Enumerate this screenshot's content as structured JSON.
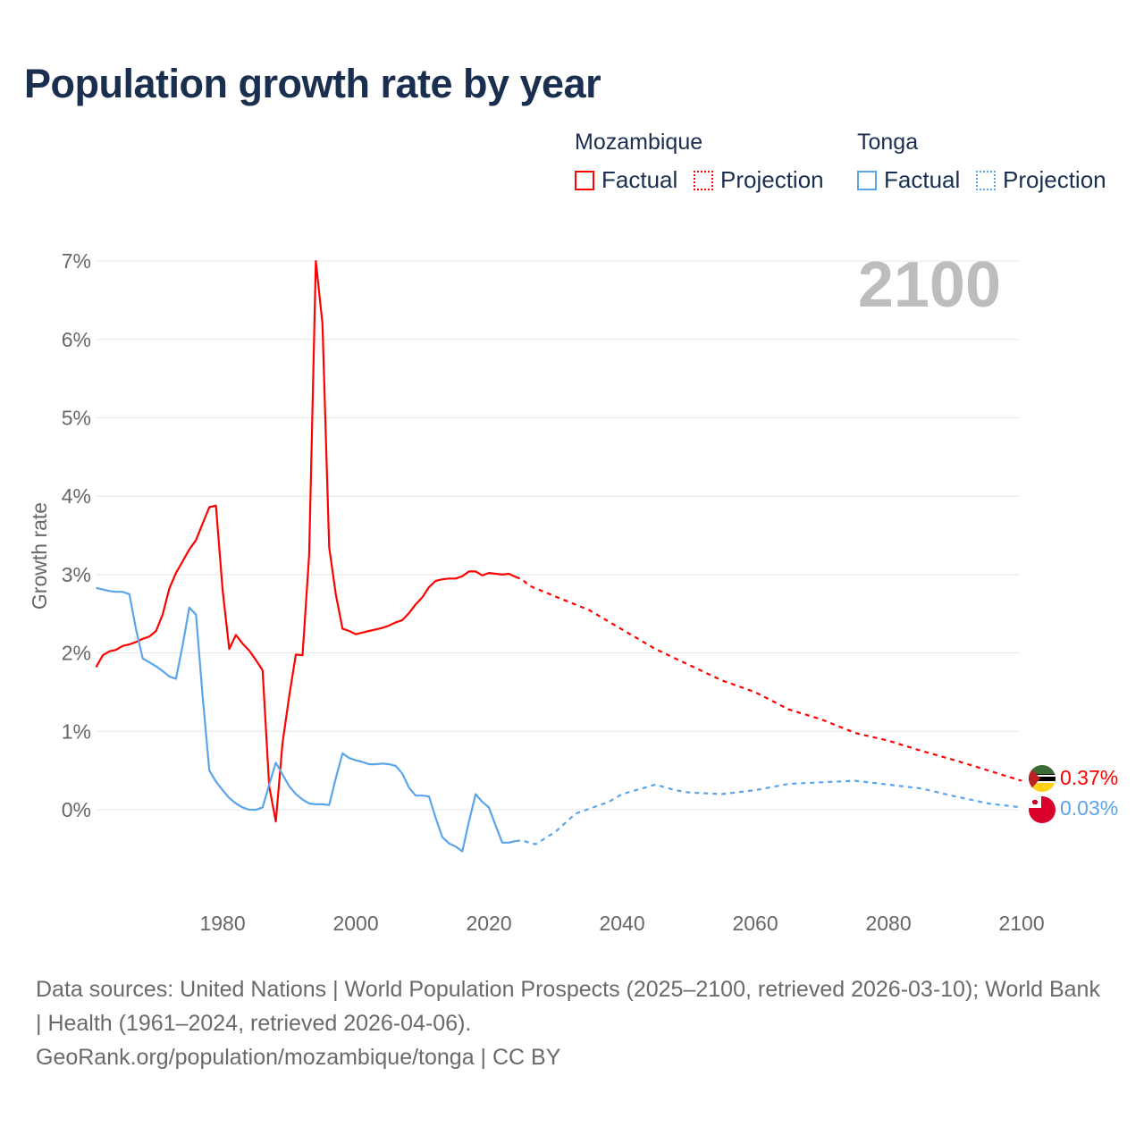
{
  "title": "Population growth rate by year",
  "legend": {
    "groups": [
      {
        "country": "Mozambique",
        "color": "#ff0000",
        "factual": "Factual",
        "projection": "Projection"
      },
      {
        "country": "Tonga",
        "color": "#5aa5ea",
        "factual": "Factual",
        "projection": "Projection"
      }
    ]
  },
  "chart_data": {
    "type": "line",
    "title": "Population growth rate by year",
    "ylabel": "Growth rate",
    "xlabel": "",
    "xlim": [
      1961,
      2100
    ],
    "ylim": [
      -1.1,
      7
    ],
    "xticks": [
      1980,
      2000,
      2020,
      2040,
      2060,
      2080,
      2100
    ],
    "yticks": [
      0,
      1,
      2,
      3,
      4,
      5,
      6,
      7
    ],
    "ytick_labels": [
      "0%",
      "1%",
      "2%",
      "3%",
      "4%",
      "5%",
      "6%",
      "7%"
    ],
    "grid": true,
    "year_label": "2100",
    "series": [
      {
        "name": "Mozambique",
        "color": "#ff0000",
        "end_label": "0.37%",
        "factual": {
          "x": [
            1961,
            1962,
            1963,
            1964,
            1965,
            1966,
            1967,
            1968,
            1969,
            1970,
            1971,
            1972,
            1973,
            1974,
            1975,
            1976,
            1977,
            1978,
            1979,
            1980,
            1981,
            1982,
            1983,
            1984,
            1985,
            1986,
            1987,
            1988,
            1989,
            1990,
            1991,
            1992,
            1993,
            1994,
            1995,
            1996,
            1997,
            1998,
            1999,
            2000,
            2001,
            2002,
            2003,
            2004,
            2005,
            2006,
            2007,
            2008,
            2009,
            2010,
            2011,
            2012,
            2013,
            2014,
            2015,
            2016,
            2017,
            2018,
            2019,
            2020,
            2021,
            2022,
            2023,
            2024
          ],
          "y": [
            1.82,
            1.97,
            2.02,
            2.04,
            2.09,
            2.11,
            2.14,
            2.18,
            2.21,
            2.28,
            2.49,
            2.82,
            3.02,
            3.17,
            3.32,
            3.44,
            3.65,
            3.86,
            3.88,
            2.8,
            2.05,
            2.23,
            2.12,
            2.03,
            1.91,
            1.78,
            0.3,
            -0.15,
            0.85,
            1.45,
            1.98,
            1.97,
            3.25,
            7.0,
            6.2,
            3.35,
            2.75,
            2.31,
            2.28,
            2.24,
            2.26,
            2.28,
            2.3,
            2.32,
            2.35,
            2.39,
            2.42,
            2.51,
            2.62,
            2.71,
            2.84,
            2.92,
            2.94,
            2.95,
            2.95,
            2.98,
            3.04,
            3.04,
            2.99,
            3.02,
            3.01,
            3.0,
            3.01,
            2.97
          ]
        },
        "projection": {
          "x": [
            2024,
            2025,
            2026,
            2030,
            2035,
            2040,
            2045,
            2050,
            2055,
            2060,
            2065,
            2070,
            2075,
            2080,
            2085,
            2090,
            2095,
            2100
          ],
          "y": [
            2.97,
            2.94,
            2.86,
            2.72,
            2.55,
            2.3,
            2.05,
            1.85,
            1.65,
            1.5,
            1.28,
            1.15,
            0.98,
            0.88,
            0.75,
            0.63,
            0.5,
            0.37
          ]
        }
      },
      {
        "name": "Tonga",
        "color": "#5aa5ea",
        "end_label": "0.03%",
        "factual": {
          "x": [
            1961,
            1962,
            1963,
            1964,
            1965,
            1966,
            1967,
            1968,
            1969,
            1970,
            1971,
            1972,
            1973,
            1974,
            1975,
            1976,
            1977,
            1978,
            1979,
            1980,
            1981,
            1982,
            1983,
            1984,
            1985,
            1986,
            1987,
            1988,
            1989,
            1990,
            1991,
            1992,
            1993,
            1994,
            1995,
            1996,
            1997,
            1998,
            1999,
            2000,
            2001,
            2002,
            2003,
            2004,
            2005,
            2006,
            2007,
            2008,
            2009,
            2010,
            2011,
            2012,
            2013,
            2014,
            2015,
            2016,
            2017,
            2018,
            2019,
            2020,
            2021,
            2022,
            2023,
            2024
          ],
          "y": [
            2.83,
            2.81,
            2.79,
            2.78,
            2.78,
            2.75,
            2.3,
            1.93,
            1.88,
            1.83,
            1.77,
            1.7,
            1.67,
            2.1,
            2.58,
            2.49,
            1.45,
            0.5,
            0.36,
            0.25,
            0.15,
            0.08,
            0.03,
            0.0,
            0.0,
            0.03,
            0.32,
            0.6,
            0.45,
            0.3,
            0.2,
            0.13,
            0.08,
            0.07,
            0.07,
            0.06,
            0.4,
            0.72,
            0.66,
            0.63,
            0.61,
            0.58,
            0.58,
            0.59,
            0.58,
            0.56,
            0.46,
            0.28,
            0.18,
            0.18,
            0.17,
            -0.1,
            -0.35,
            -0.43,
            -0.47,
            -0.53,
            -0.15,
            0.2,
            0.1,
            0.03,
            -0.2,
            -0.42,
            -0.42,
            -0.4
          ]
        },
        "projection": {
          "x": [
            2024,
            2025,
            2026,
            2027,
            2030,
            2033,
            2038,
            2040,
            2045,
            2048,
            2050,
            2055,
            2060,
            2065,
            2070,
            2075,
            2080,
            2085,
            2090,
            2095,
            2100
          ],
          "y": [
            -0.4,
            -0.39,
            -0.42,
            -0.44,
            -0.28,
            -0.05,
            0.1,
            0.2,
            0.32,
            0.25,
            0.22,
            0.2,
            0.25,
            0.33,
            0.35,
            0.37,
            0.32,
            0.27,
            0.17,
            0.08,
            0.03
          ]
        }
      }
    ]
  },
  "footer": {
    "sources": "Data sources: United Nations | World Population Prospects (2025–2100, retrieved 2026-03-10); World Bank | Health (1961–2024, retrieved 2026-04-06).",
    "credit": "GeoRank.org/population/mozambique/tonga | CC BY"
  }
}
